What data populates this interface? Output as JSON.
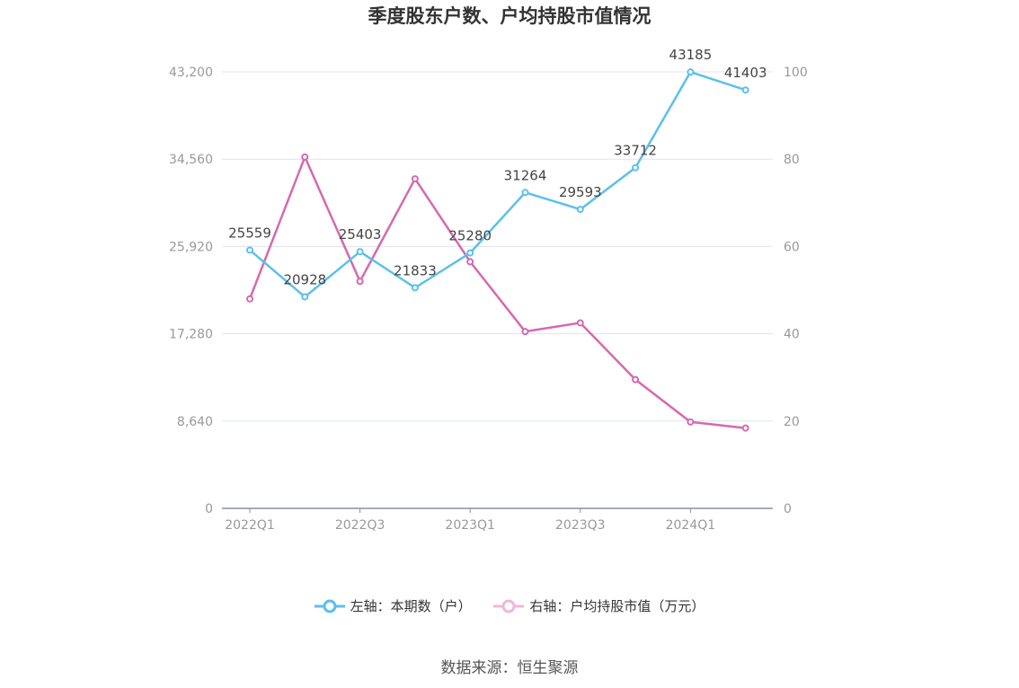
{
  "title": "季度股东户数、户均持股市值情况",
  "source": "数据来源：恒生聚源",
  "colors": {
    "left_series": "#5bc0eb",
    "right_series": "#d46aae",
    "grid": "#e0e3f0",
    "axis": "#8a8fa8"
  },
  "chart_data": {
    "type": "line",
    "x": [
      "2022Q1",
      "2022Q2",
      "2022Q3",
      "2022Q4",
      "2023Q1",
      "2023Q2",
      "2023Q3",
      "2023Q4",
      "2024Q1",
      "2024Q2"
    ],
    "x_tick_labels": [
      "2022Q1",
      "2022Q3",
      "2023Q1",
      "2023Q3",
      "2024Q1"
    ],
    "left_axis": {
      "ticks": [
        "0",
        "8,640",
        "17,280",
        "25,920",
        "34,560",
        "43,200"
      ],
      "ylim": [
        0,
        43200
      ]
    },
    "right_axis": {
      "ticks": [
        "0",
        "20",
        "40",
        "60",
        "80",
        "100"
      ],
      "ylim": [
        0,
        100
      ]
    },
    "grid": true,
    "legend_position": "bottom",
    "series": [
      {
        "name": "左轴：本期数（户）",
        "axis": "left",
        "values": [
          25559,
          20928,
          25403,
          21833,
          25280,
          31264,
          29593,
          33712,
          43185,
          41403
        ],
        "labels": [
          "25559",
          "20928",
          "25403",
          "21833",
          "25280",
          "31264",
          "29593",
          "33712",
          "43185",
          "41403"
        ]
      },
      {
        "name": "右轴：户均持股市值（万元）",
        "axis": "right",
        "values": [
          48.0,
          80.5,
          52.0,
          75.5,
          56.5,
          40.5,
          42.5,
          29.5,
          19.8,
          18.4
        ]
      }
    ]
  }
}
